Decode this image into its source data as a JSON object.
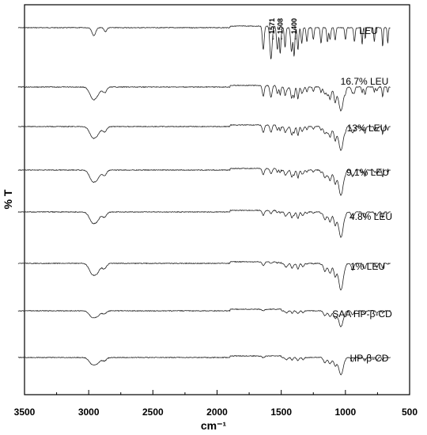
{
  "chart_data": {
    "type": "line",
    "title": "",
    "xlabel": "cm⁻¹",
    "ylabel": "% T",
    "xlim": [
      3500,
      500
    ],
    "x_reversed": true,
    "x_ticks": [
      3500,
      3000,
      2500,
      2000,
      1500,
      1000,
      500
    ],
    "y_ticks_shown": false,
    "grid": false,
    "legend": "inline labels at right of each trace",
    "series": [
      {
        "name": "LEU",
        "peaks": [
          {
            "label": "1571",
            "x": 1571
          },
          {
            "label": "1508",
            "x": 1508
          },
          {
            "label": "1400",
            "x": 1400
          }
        ]
      },
      {
        "name": "16.7% LEU"
      },
      {
        "name": "13% LEU"
      },
      {
        "name": "9.1% LEU"
      },
      {
        "name": "4.8% LEU"
      },
      {
        "name": "1% LEU"
      },
      {
        "name": "SAA HP-β-CD"
      },
      {
        "name": "HP-β-CD"
      }
    ]
  }
}
